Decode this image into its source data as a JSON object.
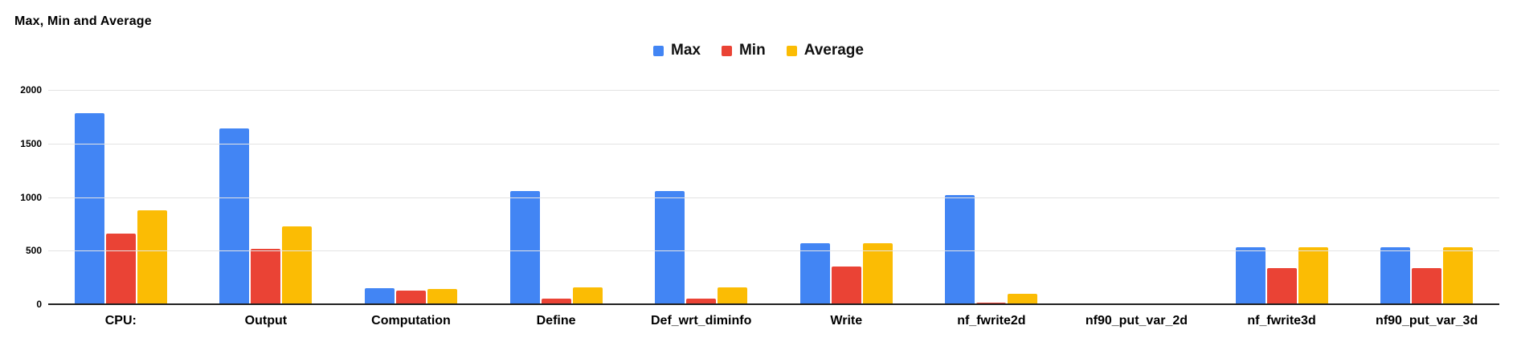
{
  "chart_data": {
    "type": "bar",
    "title": "Max, Min and Average",
    "categories": [
      "CPU:",
      "Output",
      "Computation",
      "Define",
      "Def_wrt_diminfo",
      "Write",
      "nf_fwrite2d",
      "nf90_put_var_2d",
      "nf_fwrite3d",
      "nf90_put_var_3d"
    ],
    "series": [
      {
        "name": "Max",
        "color": "#4285F4",
        "values": [
          1780,
          1640,
          150,
          1060,
          1060,
          570,
          1020,
          0,
          535,
          535
        ]
      },
      {
        "name": "Min",
        "color": "#EA4335",
        "values": [
          660,
          520,
          130,
          55,
          50,
          350,
          15,
          0,
          340,
          340
        ]
      },
      {
        "name": "Average",
        "color": "#FBBC04",
        "values": [
          875,
          725,
          140,
          160,
          155,
          570,
          100,
          0,
          530,
          535
        ]
      }
    ],
    "xlabel": "",
    "ylabel": "",
    "ylim": [
      0,
      2000
    ],
    "y_ticks": [
      0,
      500,
      1000,
      1500,
      2000
    ],
    "grid": true,
    "legend_position": "top-center",
    "colors": {
      "gridline": "#e3e3e3",
      "axis_line": "#212121",
      "text": "#000000",
      "background": "#ffffff"
    }
  }
}
